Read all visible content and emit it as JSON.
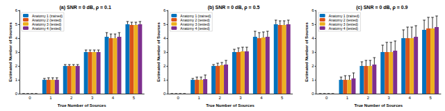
{
  "chart_data": [
    {
      "type": "bar",
      "title": "(a) SNR = 0 dB, ρ = 0.1",
      "x_label": "True Number of Sources",
      "y_label": "Estimated Number of Sources",
      "categories": [
        "0",
        "1",
        "2",
        "3",
        "4",
        "5"
      ],
      "series": [
        {
          "name": "Anatomy 1 (trained)",
          "color": "#0072BD",
          "values": [
            0,
            1,
            2,
            3,
            4.1,
            5
          ],
          "errors": [
            0,
            0.1,
            0.1,
            0.15,
            0.3,
            0.2
          ]
        },
        {
          "name": "Anatomy 2 (tested)",
          "color": "#D95319",
          "values": [
            0,
            1,
            2,
            3,
            4,
            4.95
          ],
          "errors": [
            0,
            0.15,
            0.1,
            0.15,
            0.3,
            0.2
          ]
        },
        {
          "name": "Anatomy 3 (tested)",
          "color": "#EDB120",
          "values": [
            0,
            1,
            2,
            3,
            4,
            4.95
          ],
          "errors": [
            0,
            0.15,
            0.1,
            0.15,
            0.3,
            0.2
          ]
        },
        {
          "name": "Anatomy 4 (tested)",
          "color": "#7E2F8E",
          "values": [
            0,
            1,
            2,
            3,
            4.1,
            5
          ],
          "errors": [
            0,
            0.15,
            0.1,
            0.15,
            0.3,
            0.2
          ]
        }
      ],
      "ylim": [
        0,
        6
      ],
      "yticks": [
        0,
        1,
        2,
        3,
        4,
        5,
        6
      ],
      "grid": false,
      "legend": "top-left"
    },
    {
      "type": "bar",
      "title": "(b) SNR = 0 dB, ρ = 0.5",
      "x_label": "True Number of Sources",
      "y_label": "Estimated Number of Sources",
      "categories": [
        "0",
        "1",
        "2",
        "3",
        "4",
        "5"
      ],
      "series": [
        {
          "name": "Anatomy 1 (trained)",
          "color": "#0072BD",
          "values": [
            0,
            1,
            2,
            3,
            4.1,
            5
          ],
          "errors": [
            0,
            0.1,
            0.1,
            0.2,
            0.4,
            0.3
          ]
        },
        {
          "name": "Anatomy 2 (tested)",
          "color": "#D95319",
          "values": [
            0,
            1,
            2,
            3,
            4,
            4.95
          ],
          "errors": [
            0,
            0.2,
            0.2,
            0.3,
            0.4,
            0.3
          ]
        },
        {
          "name": "Anatomy 3 (tested)",
          "color": "#EDB120",
          "values": [
            0,
            1,
            2.05,
            3.05,
            4.05,
            4.95
          ],
          "errors": [
            0,
            0.2,
            0.2,
            0.3,
            0.4,
            0.3
          ]
        },
        {
          "name": "Anatomy 4 (tested)",
          "color": "#7E2F8E",
          "values": [
            0,
            1.05,
            2.1,
            3.05,
            4.1,
            5
          ],
          "errors": [
            0,
            0.3,
            0.3,
            0.3,
            0.4,
            0.3
          ]
        }
      ],
      "ylim": [
        0,
        6
      ],
      "yticks": [
        0,
        1,
        2,
        3,
        4,
        5,
        6
      ],
      "grid": false,
      "legend": "top-left"
    },
    {
      "type": "bar",
      "title": "(c) SNR = 0 dB, ρ = 0.9",
      "x_label": "True Number of Sources",
      "y_label": "Estimated Number of Sources",
      "categories": [
        "0",
        "1",
        "2",
        "3",
        "4",
        "5"
      ],
      "series": [
        {
          "name": "Anatomy 1 (trained)",
          "color": "#0072BD",
          "values": [
            0,
            1,
            2,
            3,
            4,
            4.6
          ],
          "errors": [
            0,
            0.2,
            0.3,
            0.5,
            0.6,
            0.7
          ]
        },
        {
          "name": "Anatomy 2 (tested)",
          "color": "#D95319",
          "values": [
            0,
            1,
            2,
            3,
            4,
            4.7
          ],
          "errors": [
            0,
            0.3,
            0.4,
            0.7,
            0.8,
            0.8
          ]
        },
        {
          "name": "Anatomy 3 (tested)",
          "color": "#EDB120",
          "values": [
            0,
            1,
            2,
            3,
            4,
            4.7
          ],
          "errors": [
            0,
            0.3,
            0.4,
            0.7,
            0.8,
            0.8
          ]
        },
        {
          "name": "Anatomy 4 (tested)",
          "color": "#7E2F8E",
          "values": [
            0,
            1.1,
            2.1,
            3.1,
            4.1,
            4.8
          ],
          "errors": [
            0,
            0.4,
            0.5,
            0.7,
            0.8,
            0.8
          ]
        }
      ],
      "ylim": [
        0,
        6
      ],
      "yticks": [
        0,
        1,
        2,
        3,
        4,
        5,
        6
      ],
      "grid": false,
      "legend": "top-left"
    }
  ]
}
